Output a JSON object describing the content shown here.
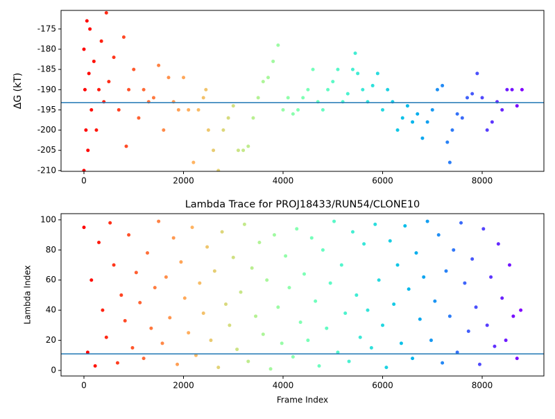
{
  "chart_data": [
    {
      "type": "scatter",
      "ylabel": "ΔG (kT)",
      "colormap": "rainbow_r",
      "marker_size": 2.5,
      "x": [
        0,
        0,
        20,
        40,
        60,
        80,
        100,
        120,
        150,
        200,
        250,
        300,
        350,
        400,
        450,
        500,
        600,
        700,
        800,
        850,
        900,
        1000,
        1100,
        1200,
        1300,
        1400,
        1500,
        1600,
        1700,
        1800,
        1900,
        2000,
        2100,
        2200,
        2300,
        2400,
        2450,
        2500,
        2600,
        2700,
        2800,
        2900,
        3000,
        3100,
        3200,
        3300,
        3400,
        3500,
        3600,
        3700,
        3800,
        3900,
        4000,
        4100,
        4200,
        4300,
        4400,
        4500,
        4600,
        4700,
        4800,
        4900,
        5000,
        5100,
        5200,
        5300,
        5400,
        5450,
        5500,
        5600,
        5700,
        5800,
        5900,
        6000,
        6100,
        6200,
        6300,
        6400,
        6500,
        6600,
        6700,
        6800,
        6900,
        7000,
        7100,
        7200,
        7300,
        7350,
        7400,
        7500,
        7600,
        7700,
        7800,
        7900,
        8000,
        8100,
        8200,
        8300,
        8400,
        8500,
        8600,
        8700,
        8800
      ],
      "values": [
        -210,
        -180,
        -190,
        -200,
        -173,
        -205,
        -186,
        -175,
        -195,
        -183,
        -200,
        -190,
        -178,
        -193,
        -171,
        -188,
        -182,
        -195,
        -177,
        -204,
        -190,
        -185,
        -197,
        -190,
        -193,
        -192,
        -184,
        -200,
        -187,
        -193,
        -195,
        -187,
        -195,
        -208,
        -195,
        -192,
        -190,
        -200,
        -205,
        -210,
        -200,
        -197,
        -194,
        -205,
        -205,
        -204,
        -197,
        -192,
        -188,
        -187,
        -183,
        -179,
        -195,
        -192,
        -196,
        -195,
        -192,
        -190,
        -185,
        -193,
        -195,
        -190,
        -188,
        -185,
        -193,
        -191,
        -185,
        -181,
        -186,
        -190,
        -193,
        -189,
        -186,
        -195,
        -190,
        -193,
        -200,
        -197,
        -194,
        -198,
        -196,
        -202,
        -198,
        -195,
        -190,
        -189,
        -203,
        -208,
        -200,
        -196,
        -197,
        -192,
        -191,
        -186,
        -192,
        -200,
        -198,
        -193,
        -195,
        -190,
        -190,
        -194,
        -190
      ],
      "hline": {
        "value": -193.2,
        "color": "#1f77b4"
      },
      "xlim": [
        -460,
        9240
      ],
      "xticks": [
        0,
        2000,
        4000,
        6000,
        8000
      ],
      "ylim": [
        -210.2,
        -170.4
      ],
      "yticks": [
        -175,
        -180,
        -185,
        -190,
        -195,
        -200,
        -205,
        -210
      ]
    },
    {
      "type": "scatter",
      "title": "Lambda Trace for PROJ18433/RUN54/CLONE10",
      "xlabel": "Frame Index",
      "ylabel": "Lambda Index",
      "colormap": "rainbow_r",
      "marker_size": 2.5,
      "x": [
        0,
        75,
        150,
        225,
        300,
        375,
        450,
        525,
        600,
        675,
        750,
        825,
        900,
        975,
        1050,
        1125,
        1200,
        1275,
        1350,
        1425,
        1500,
        1575,
        1650,
        1725,
        1800,
        1875,
        1950,
        2025,
        2100,
        2175,
        2250,
        2325,
        2400,
        2475,
        2550,
        2625,
        2700,
        2775,
        2850,
        2925,
        3000,
        3075,
        3150,
        3225,
        3300,
        3375,
        3450,
        3525,
        3600,
        3675,
        3750,
        3825,
        3900,
        3975,
        4050,
        4125,
        4200,
        4275,
        4350,
        4425,
        4500,
        4575,
        4650,
        4725,
        4800,
        4875,
        4950,
        5025,
        5100,
        5175,
        5250,
        5325,
        5400,
        5475,
        5550,
        5625,
        5700,
        5775,
        5850,
        5925,
        6000,
        6075,
        6150,
        6225,
        6300,
        6375,
        6450,
        6525,
        6600,
        6675,
        6750,
        6825,
        6900,
        6975,
        7050,
        7125,
        7200,
        7275,
        7350,
        7425,
        7500,
        7575,
        7650,
        7725,
        7800,
        7875,
        7950,
        8025,
        8100,
        8175,
        8250,
        8325,
        8400,
        8475,
        8550,
        8625,
        8700,
        8775
      ],
      "values": [
        95,
        12,
        60,
        3,
        85,
        40,
        22,
        98,
        70,
        5,
        50,
        33,
        90,
        15,
        65,
        45,
        8,
        78,
        28,
        55,
        99,
        18,
        62,
        35,
        88,
        4,
        72,
        48,
        25,
        95,
        10,
        58,
        38,
        82,
        20,
        66,
        2,
        92,
        44,
        30,
        75,
        14,
        52,
        97,
        6,
        68,
        36,
        85,
        24,
        60,
        1,
        90,
        42,
        18,
        76,
        55,
        9,
        94,
        32,
        64,
        20,
        88,
        46,
        3,
        80,
        28,
        58,
        99,
        12,
        70,
        38,
        6,
        92,
        50,
        22,
        84,
        40,
        15,
        97,
        60,
        30,
        2,
        86,
        44,
        70,
        18,
        96,
        54,
        8,
        78,
        34,
        62,
        99,
        20,
        46,
        90,
        5,
        66,
        36,
        80,
        12,
        98,
        58,
        26,
        74,
        42,
        4,
        94,
        30,
        62,
        16,
        84,
        48,
        20,
        70,
        36,
        8,
        40
      ],
      "hline": {
        "value": 11,
        "color": "#1f77b4"
      },
      "xlim": [
        -460,
        9240
      ],
      "xticks": [
        0,
        2000,
        4000,
        6000,
        8000
      ],
      "ylim": [
        -3.7,
        104.1
      ],
      "yticks": [
        0,
        20,
        40,
        60,
        80,
        100
      ]
    }
  ]
}
